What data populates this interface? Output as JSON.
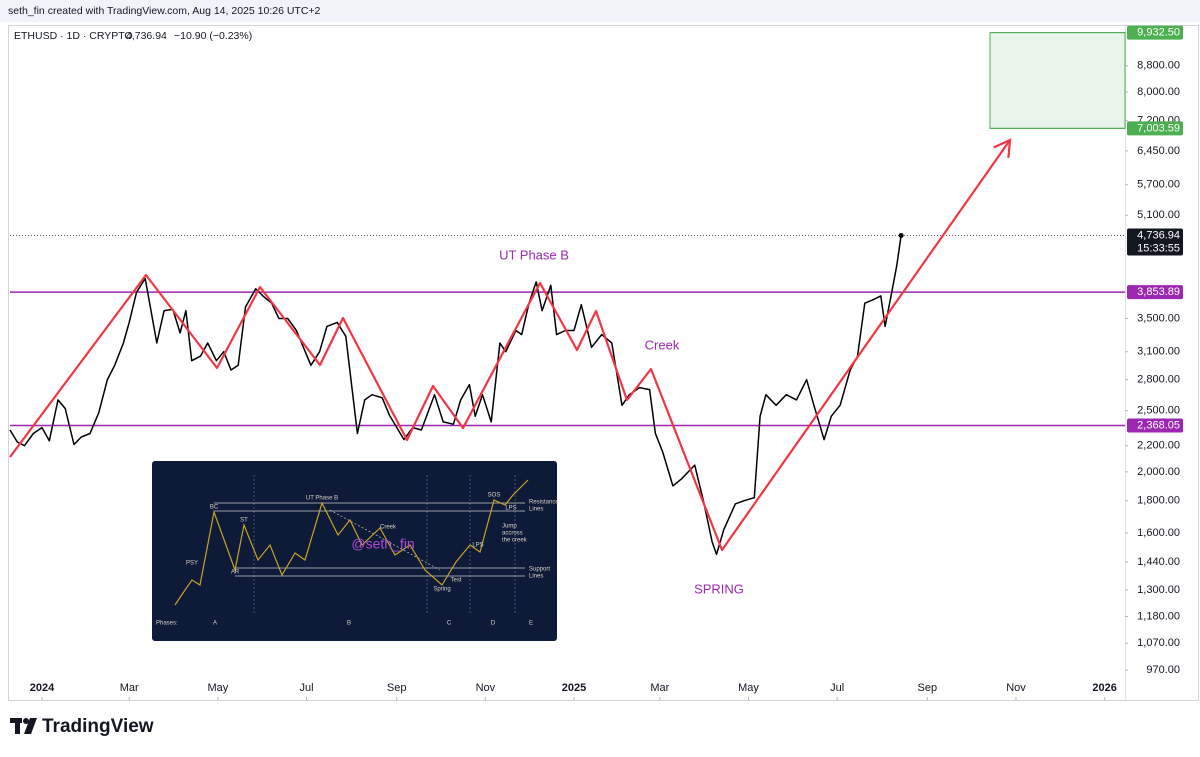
{
  "header": {
    "author_line": "seth_fin created with TradingView.com, Aug 14, 2025 10:26 UTC+2"
  },
  "chart_data": {
    "type": "line",
    "title": "ETHUSD · 1D · CRYPTO",
    "change_label": "−10.90 (−0.23%)",
    "log_scale": true,
    "grid": false,
    "xlim": [
      "2023-12-10",
      "2026-01-15"
    ],
    "xticks": [
      {
        "value": "2024-01",
        "label": "2024"
      },
      {
        "value": "2024-03",
        "label": "Mar"
      },
      {
        "value": "2024-05",
        "label": "May"
      },
      {
        "value": "2024-07",
        "label": "Jul"
      },
      {
        "value": "2024-09",
        "label": "Sep"
      },
      {
        "value": "2024-11",
        "label": "Nov"
      },
      {
        "value": "2025-01",
        "label": "2025"
      },
      {
        "value": "2025-03",
        "label": "Mar"
      },
      {
        "value": "2025-05",
        "label": "May"
      },
      {
        "value": "2025-07",
        "label": "Jul"
      },
      {
        "value": "2025-09",
        "label": "Sep"
      },
      {
        "value": "2025-11",
        "label": "Nov"
      },
      {
        "value": "2026-01",
        "label": "2026"
      }
    ],
    "ylim": [
      870,
      10100
    ],
    "yticks": [
      {
        "value": 8800,
        "label": "8,800.00"
      },
      {
        "value": 8000,
        "label": "8,000.00"
      },
      {
        "value": 7200,
        "label": "7,200.00"
      },
      {
        "value": 6450,
        "label": "6,450.00"
      },
      {
        "value": 5700,
        "label": "5,700.00"
      },
      {
        "value": 5100,
        "label": "5,100.00"
      },
      {
        "value": 3500,
        "label": "3,500.00"
      },
      {
        "value": 3100,
        "label": "3,100.00"
      },
      {
        "value": 2800,
        "label": "2,800.00"
      },
      {
        "value": 2500,
        "label": "2,500.00"
      },
      {
        "value": 2200,
        "label": "2,200.00"
      },
      {
        "value": 2000,
        "label": "2,000.00"
      },
      {
        "value": 1800,
        "label": "1,800.00"
      },
      {
        "value": 1600,
        "label": "1,600.00"
      },
      {
        "value": 1440,
        "label": "1,440.00"
      },
      {
        "value": 1300,
        "label": "1,300.00"
      },
      {
        "value": 1180,
        "label": "1,180.00"
      },
      {
        "value": 1070,
        "label": "1,070.00"
      },
      {
        "value": 970,
        "label": "970.00"
      }
    ],
    "series": [
      {
        "color": "#000000",
        "x": [
          "2023-12-10",
          "2023-12-15",
          "2023-12-20",
          "2023-12-26",
          "2024-01-01",
          "2024-01-06",
          "2024-01-12",
          "2024-01-17",
          "2024-01-23",
          "2024-01-28",
          "2024-02-03",
          "2024-02-09",
          "2024-02-15",
          "2024-02-20",
          "2024-02-26",
          "2024-03-01",
          "2024-03-06",
          "2024-03-12",
          "2024-03-16",
          "2024-03-20",
          "2024-03-25",
          "2024-03-31",
          "2024-04-05",
          "2024-04-09",
          "2024-04-13",
          "2024-04-19",
          "2024-04-24",
          "2024-04-30",
          "2024-05-05",
          "2024-05-10",
          "2024-05-15",
          "2024-05-20",
          "2024-05-27",
          "2024-06-01",
          "2024-06-07",
          "2024-06-12",
          "2024-06-18",
          "2024-06-24",
          "2024-07-04",
          "2024-07-10",
          "2024-07-15",
          "2024-07-22",
          "2024-07-28",
          "2024-08-05",
          "2024-08-10",
          "2024-08-15",
          "2024-08-22",
          "2024-08-27",
          "2024-09-06",
          "2024-09-12",
          "2024-09-18",
          "2024-09-27",
          "2024-10-03",
          "2024-10-10",
          "2024-10-15",
          "2024-10-21",
          "2024-10-25",
          "2024-10-30",
          "2024-11-05",
          "2024-11-11",
          "2024-11-15",
          "2024-11-22",
          "2024-11-26",
          "2024-12-01",
          "2024-12-06",
          "2024-12-10",
          "2024-12-16",
          "2024-12-20",
          "2024-12-26",
          "2025-01-01",
          "2025-01-06",
          "2025-01-13",
          "2025-01-20",
          "2025-01-27",
          "2025-02-03",
          "2025-02-08",
          "2025-02-15",
          "2025-02-22",
          "2025-02-26",
          "2025-03-03",
          "2025-03-10",
          "2025-03-16",
          "2025-03-25",
          "2025-03-31",
          "2025-04-06",
          "2025-04-09",
          "2025-04-14",
          "2025-04-22",
          "2025-04-28",
          "2025-05-05",
          "2025-05-09",
          "2025-05-13",
          "2025-05-20",
          "2025-05-27",
          "2025-06-03",
          "2025-06-10",
          "2025-06-15",
          "2025-06-22",
          "2025-06-27",
          "2025-07-03",
          "2025-07-10",
          "2025-07-15",
          "2025-07-20",
          "2025-07-26",
          "2025-07-31",
          "2025-08-03",
          "2025-08-08",
          "2025-08-11",
          "2025-08-14"
        ],
        "values": [
          2330,
          2230,
          2200,
          2300,
          2350,
          2240,
          2600,
          2520,
          2210,
          2270,
          2300,
          2480,
          2800,
          2950,
          3200,
          3450,
          3850,
          4050,
          3600,
          3200,
          3600,
          3620,
          3320,
          3600,
          3000,
          3050,
          3200,
          3000,
          3100,
          2900,
          2950,
          3650,
          3900,
          3800,
          3700,
          3500,
          3500,
          3350,
          2950,
          3100,
          3400,
          3450,
          3280,
          2300,
          2600,
          2650,
          2620,
          2460,
          2250,
          2350,
          2330,
          2650,
          2400,
          2380,
          2600,
          2750,
          2450,
          2650,
          2400,
          3200,
          3100,
          3350,
          3300,
          3700,
          4000,
          3600,
          3950,
          3300,
          3350,
          3350,
          3680,
          3150,
          3300,
          3200,
          2550,
          2650,
          2720,
          2700,
          2300,
          2150,
          1900,
          1950,
          2050,
          1800,
          1550,
          1480,
          1620,
          1780,
          1800,
          1820,
          2450,
          2650,
          2550,
          2650,
          2600,
          2800,
          2550,
          2250,
          2450,
          2550,
          2900,
          3050,
          3700,
          3750,
          3800,
          3400,
          3900,
          4250,
          4736.94
        ]
      }
    ],
    "price_line": {
      "value": 4736.94,
      "label": "4,736.94",
      "countdown": "15:33:55",
      "color": "#131722"
    },
    "levels": [
      {
        "value": 3853.89,
        "label": "3,853.89",
        "color": "#9c27b0"
      },
      {
        "value": 2368.05,
        "label": "2,368.05",
        "color": "#9c27b0"
      }
    ],
    "target_zone": {
      "low": {
        "value": 7003.59,
        "label": "7,003.59"
      },
      "high": {
        "value": 9932.5,
        "label": "9,932.50"
      },
      "color": "#4caf50"
    },
    "annotations": [
      {
        "text": "UT Phase B"
      },
      {
        "text": "Creek"
      },
      {
        "text": "SPRING"
      }
    ]
  },
  "inset": {
    "watermark": "@seth_fin",
    "labels": [
      "PSY",
      "BC",
      "ST",
      "AR",
      "UT Phase B",
      "Creek",
      "SOS",
      "LPS",
      "LPS",
      "Spring",
      "Test",
      "Resistance",
      "Lines",
      "Support",
      "Lines"
    ],
    "jump": [
      "Jump",
      "accross",
      "the creek"
    ],
    "phases_title": "Phases:",
    "phases": [
      "A",
      "B",
      "C",
      "D",
      "E"
    ]
  },
  "footer": {
    "brand": "TradingView"
  }
}
